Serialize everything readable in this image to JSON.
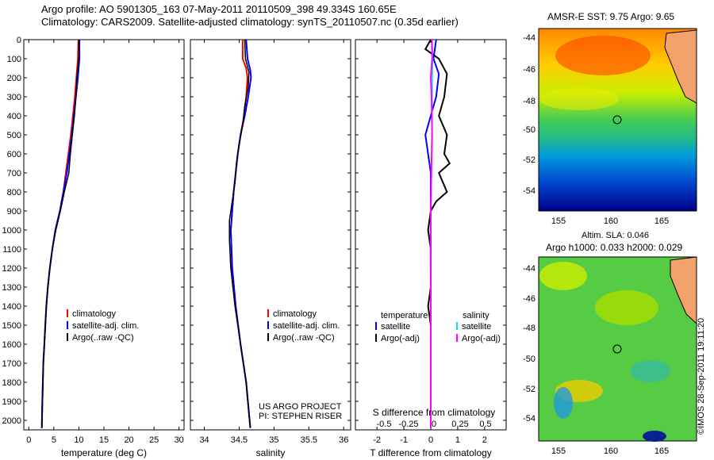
{
  "header": {
    "line1": "Argo profile: AO 5901305_163 07-May-2011 20110509_398 49.334S 160.65E",
    "line2": "Climatology: CARS2009. Satellite-adjusted climatology: synTS_20110507.nc (0.35d earlier)"
  },
  "watermark": "©IMOS 28-Sep-2011 19:11:20",
  "colors": {
    "climatology": "#ff0000",
    "satellite": "#0000ff",
    "argo": "#000000",
    "sal_satellite": "#00e5ee",
    "sal_argo": "#ff00ff"
  },
  "chart_data": [
    {
      "type": "line",
      "xlabel": "temperature (deg C)",
      "xlim": [
        -1,
        31
      ],
      "xticks": [
        "0",
        "5",
        "10",
        "15",
        "20",
        "25",
        "30"
      ],
      "ylim": [
        0,
        2050
      ],
      "yticks": [
        "0",
        "100",
        "200",
        "300",
        "400",
        "500",
        "600",
        "700",
        "800",
        "900",
        "1000",
        "1100",
        "1200",
        "1300",
        "1400",
        "1500",
        "1600",
        "1700",
        "1800",
        "1900",
        "2000"
      ],
      "legend": [
        "climatology",
        "satellite-adj. clim.",
        "Argo(..raw -QC)"
      ],
      "series": [
        {
          "name": "climatology",
          "color": "#ff0000",
          "points": [
            [
              9.9,
              0
            ],
            [
              9.8,
              100
            ],
            [
              9.5,
              200
            ],
            [
              9.2,
              300
            ],
            [
              8.8,
              400
            ],
            [
              8.4,
              500
            ],
            [
              7.9,
              600
            ],
            [
              7.4,
              700
            ],
            [
              6.9,
              800
            ],
            [
              6.2,
              900
            ],
            [
              5.3,
              1000
            ],
            [
              4.7,
              1100
            ],
            [
              4.2,
              1200
            ],
            [
              3.8,
              1300
            ],
            [
              3.5,
              1400
            ],
            [
              3.3,
              1500
            ],
            [
              3.1,
              1600
            ],
            [
              2.9,
              1700
            ],
            [
              2.8,
              1800
            ],
            [
              2.7,
              1900
            ],
            [
              2.6,
              2040
            ]
          ]
        },
        {
          "name": "satellite-adj. clim.",
          "color": "#0000ff",
          "points": [
            [
              10.1,
              0
            ],
            [
              10.1,
              100
            ],
            [
              9.8,
              200
            ],
            [
              9.4,
              300
            ],
            [
              9.0,
              400
            ],
            [
              8.6,
              500
            ],
            [
              8.1,
              600
            ],
            [
              7.6,
              700
            ],
            [
              6.9,
              800
            ],
            [
              6.2,
              900
            ],
            [
              5.3,
              1000
            ],
            [
              4.7,
              1100
            ],
            [
              4.2,
              1200
            ],
            [
              3.8,
              1300
            ],
            [
              3.5,
              1400
            ],
            [
              3.3,
              1500
            ],
            [
              3.1,
              1600
            ],
            [
              2.9,
              1700
            ],
            [
              2.8,
              1800
            ],
            [
              2.7,
              1900
            ],
            [
              2.6,
              2040
            ]
          ]
        },
        {
          "name": "Argo(..raw -QC)",
          "color": "#000000",
          "points": [
            [
              10.0,
              0
            ],
            [
              10.0,
              100
            ],
            [
              9.6,
              200
            ],
            [
              9.4,
              300
            ],
            [
              9.1,
              400
            ],
            [
              8.7,
              500
            ],
            [
              8.3,
              600
            ],
            [
              8.0,
              700
            ],
            [
              7.1,
              800
            ],
            [
              6.3,
              900
            ],
            [
              5.4,
              1000
            ],
            [
              4.7,
              1100
            ],
            [
              4.2,
              1200
            ],
            [
              3.8,
              1300
            ],
            [
              3.5,
              1400
            ],
            [
              3.3,
              1500
            ],
            [
              3.1,
              1600
            ],
            [
              2.9,
              1700
            ],
            [
              2.8,
              1800
            ],
            [
              2.7,
              1900
            ],
            [
              2.6,
              2040
            ]
          ]
        }
      ]
    },
    {
      "type": "line",
      "xlabel": "salinity",
      "xlim": [
        33.8,
        36.1
      ],
      "xticks": [
        "34",
        "34.5",
        "35",
        "35.5",
        "36"
      ],
      "ylim": [
        0,
        2050
      ],
      "legend": [
        "climatology",
        "satellite-adj. clim.",
        "Argo(..raw -QC)"
      ],
      "annotation": [
        "US ARGO PROJECT",
        "PI: STEPHEN RISER"
      ],
      "series": [
        {
          "name": "climatology",
          "color": "#ff0000",
          "points": [
            [
              34.55,
              0
            ],
            [
              34.55,
              100
            ],
            [
              34.6,
              150
            ],
            [
              34.62,
              200
            ],
            [
              34.6,
              300
            ],
            [
              34.57,
              400
            ],
            [
              34.52,
              500
            ],
            [
              34.48,
              600
            ],
            [
              34.45,
              700
            ],
            [
              34.42,
              800
            ],
            [
              34.4,
              900
            ],
            [
              34.38,
              1000
            ],
            [
              34.4,
              1200
            ],
            [
              34.45,
              1400
            ],
            [
              34.52,
              1600
            ],
            [
              34.6,
              1800
            ],
            [
              34.66,
              2040
            ]
          ]
        },
        {
          "name": "satellite-adj. clim.",
          "color": "#0000ff",
          "points": [
            [
              34.6,
              0
            ],
            [
              34.62,
              100
            ],
            [
              34.66,
              160
            ],
            [
              34.67,
              200
            ],
            [
              34.63,
              300
            ],
            [
              34.58,
              400
            ],
            [
              34.52,
              500
            ],
            [
              34.48,
              600
            ],
            [
              34.45,
              700
            ],
            [
              34.42,
              800
            ],
            [
              34.4,
              900
            ],
            [
              34.38,
              1000
            ],
            [
              34.4,
              1200
            ],
            [
              34.45,
              1400
            ],
            [
              34.52,
              1600
            ],
            [
              34.6,
              1800
            ],
            [
              34.66,
              2040
            ]
          ]
        },
        {
          "name": "Argo(..raw -QC)",
          "color": "#000000",
          "points": [
            [
              34.58,
              0
            ],
            [
              34.59,
              100
            ],
            [
              34.64,
              170
            ],
            [
              34.63,
              250
            ],
            [
              34.58,
              350
            ],
            [
              34.55,
              450
            ],
            [
              34.5,
              550
            ],
            [
              34.46,
              650
            ],
            [
              34.44,
              750
            ],
            [
              34.4,
              850
            ],
            [
              34.36,
              950
            ],
            [
              34.36,
              1050
            ],
            [
              34.38,
              1200
            ],
            [
              34.44,
              1400
            ],
            [
              34.52,
              1600
            ],
            [
              34.6,
              1800
            ],
            [
              34.66,
              2040
            ]
          ]
        }
      ]
    },
    {
      "type": "line",
      "xlabel": "T difference from climatology",
      "xlabel_top": "S difference from climatology",
      "xlim": [
        -2.8,
        2.8
      ],
      "xticks": [
        "-2",
        "-1",
        "0",
        "1",
        "2"
      ],
      "xticks_top": [
        "-0.5",
        "-0.25",
        "0",
        "0.25",
        "0.5"
      ],
      "ylim": [
        0,
        2050
      ],
      "legend_left_title": "temperature",
      "legend_right_title": "salinity",
      "legend_left": [
        "satellite",
        "Argo(-adj)"
      ],
      "legend_right": [
        "satellite",
        "Argo(-adj)"
      ],
      "series": [
        {
          "name": "T satellite",
          "color": "#0000ff",
          "points": [
            [
              0.2,
              0
            ],
            [
              0.1,
              100
            ],
            [
              0.3,
              180
            ],
            [
              0.2,
              300
            ],
            [
              0.0,
              400
            ],
            [
              -0.2,
              500
            ],
            [
              -0.1,
              600
            ],
            [
              0.0,
              700
            ],
            [
              0.0,
              800
            ],
            [
              0.0,
              900
            ],
            [
              0.0,
              1000
            ],
            [
              0.0,
              1500
            ],
            [
              0.0,
              1600
            ],
            [
              0.0,
              2040
            ]
          ]
        },
        {
          "name": "T Argo(-adj)",
          "color": "#000000",
          "points": [
            [
              0.0,
              0
            ],
            [
              -0.2,
              50
            ],
            [
              0.3,
              100
            ],
            [
              0.6,
              180
            ],
            [
              0.5,
              300
            ],
            [
              0.3,
              400
            ],
            [
              0.6,
              500
            ],
            [
              0.5,
              600
            ],
            [
              0.7,
              650
            ],
            [
              0.3,
              700
            ],
            [
              0.6,
              800
            ],
            [
              0.2,
              850
            ],
            [
              0.0,
              900
            ],
            [
              -0.1,
              1000
            ],
            [
              0.0,
              1100
            ],
            [
              0.0,
              1300
            ],
            [
              -0.1,
              1400
            ],
            [
              0.0,
              1500
            ],
            [
              0.0,
              2040
            ]
          ]
        },
        {
          "name": "S satellite",
          "color": "#00e5ee",
          "points": [
            [
              0.05,
              0
            ],
            [
              0.07,
              100
            ],
            [
              0.06,
              200
            ],
            [
              0.05,
              400
            ],
            [
              0.03,
              600
            ],
            [
              0.02,
              800
            ],
            [
              0.0,
              1000
            ],
            [
              0.0,
              1400
            ],
            [
              0.0,
              2040
            ]
          ]
        },
        {
          "name": "S Argo(-adj)",
          "color": "#ff00ff",
          "points": [
            [
              0.04,
              0
            ],
            [
              0.05,
              100
            ],
            [
              0.0,
              200
            ],
            [
              0.03,
              300
            ],
            [
              0.05,
              500
            ],
            [
              0.02,
              700
            ],
            [
              0.0,
              900
            ],
            [
              -0.01,
              1100
            ],
            [
              0.0,
              1300
            ],
            [
              0.0,
              2040
            ]
          ]
        }
      ]
    },
    {
      "type": "heatmap",
      "title": "AMSR-E SST: 9.75 Argo: 9.65",
      "xticks": [
        "155",
        "160",
        "165"
      ],
      "yticks": [
        "-44",
        "-46",
        "-48",
        "-50",
        "-52",
        "-54"
      ]
    },
    {
      "type": "heatmap",
      "title_line1": "Altim. SLA: 0.046",
      "title_line2": "Argo h1000: 0.033 h2000: 0.029",
      "xticks": [
        "155",
        "160",
        "165"
      ],
      "yticks": [
        "-44",
        "-46",
        "-48",
        "-50",
        "-52",
        "-54"
      ]
    }
  ]
}
